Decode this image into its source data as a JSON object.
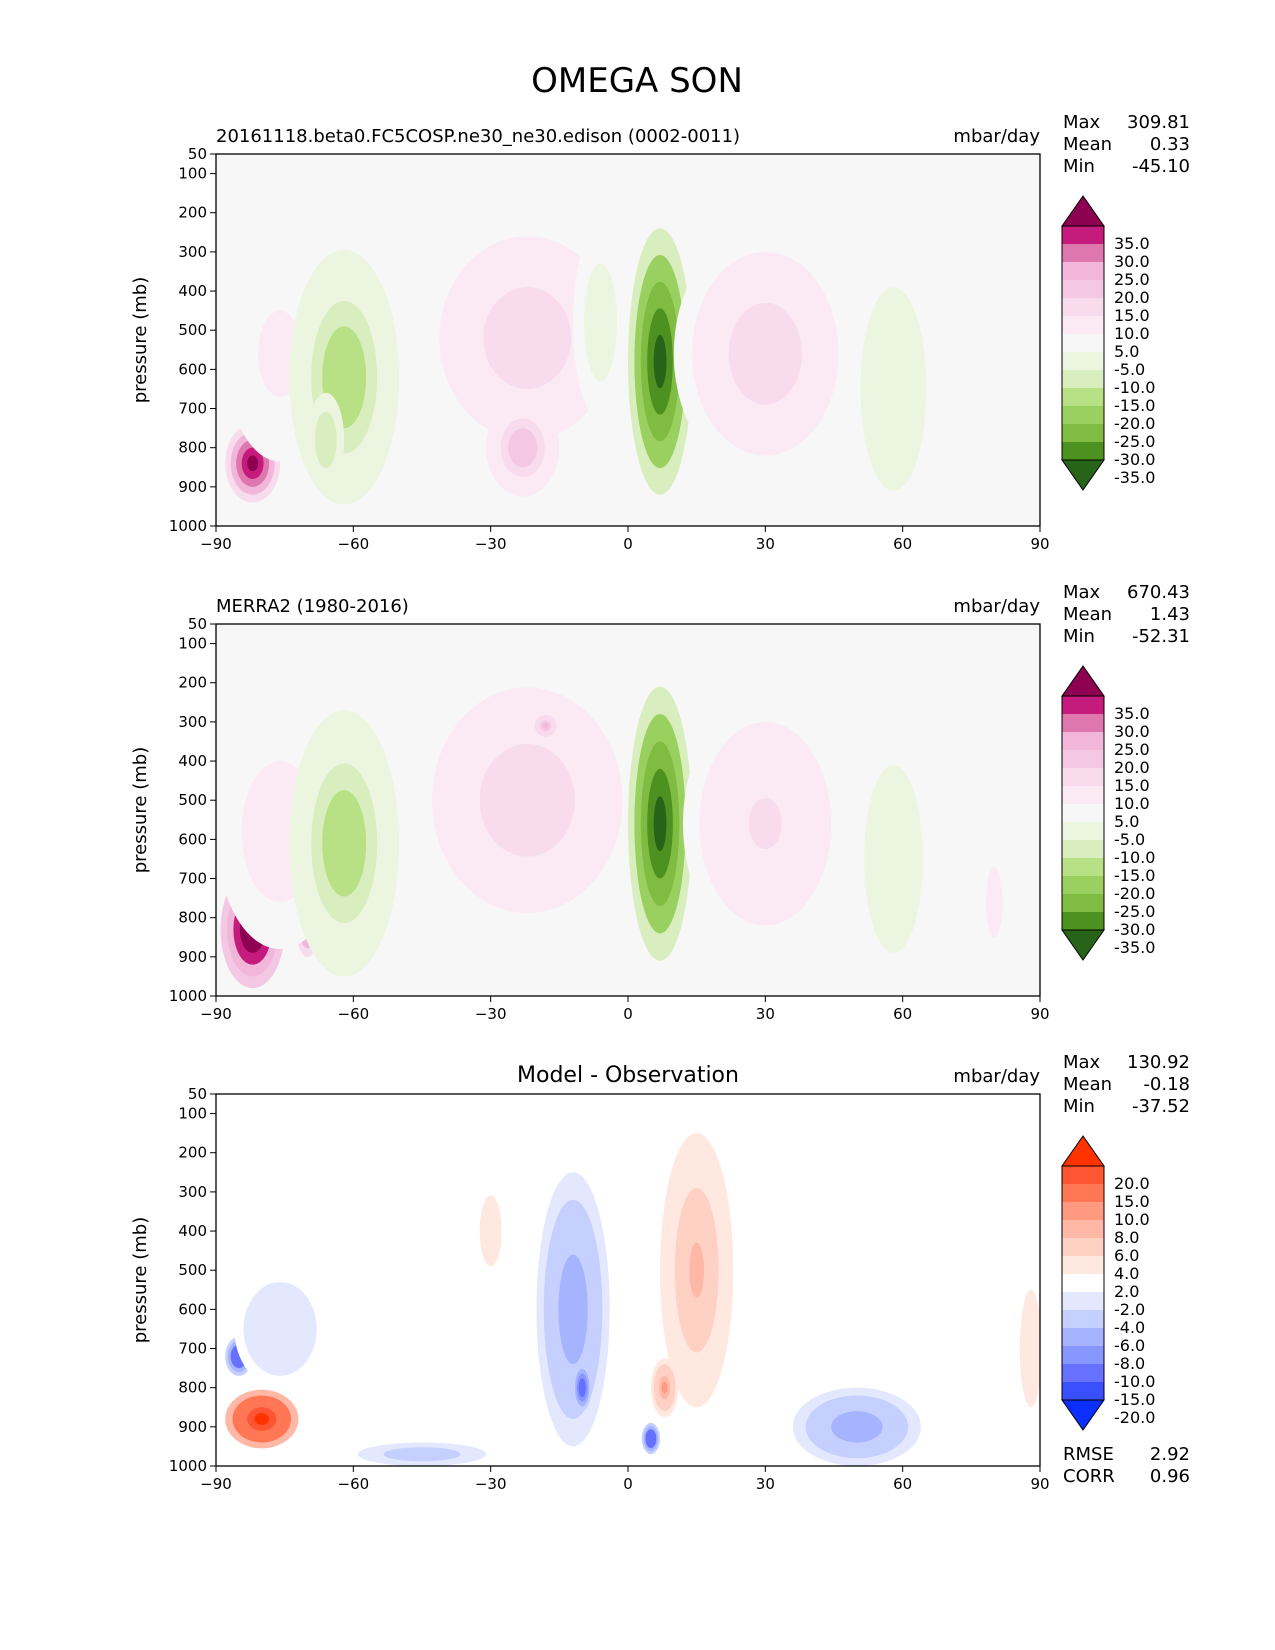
{
  "chart_data": {
    "type": "heatmap",
    "title": "OMEGA SON",
    "panels": [
      {
        "id": "test",
        "title_left": "20161118.beta0.FC5COSP.ne30_ne30.edison (0002-0011)",
        "title_center": "",
        "units": "mbar/day",
        "stats": [
          {
            "label": "Max",
            "value": "309.81"
          },
          {
            "label": "Mean",
            "value": "0.33"
          },
          {
            "label": "Min",
            "value": "-45.10"
          }
        ],
        "extra_stats": [],
        "colorbar": {
          "levels": [
            "35.0",
            "30.0",
            "25.0",
            "20.0",
            "15.0",
            "10.0",
            "5.0",
            "-5.0",
            "-10.0",
            "-15.0",
            "-20.0",
            "-25.0",
            "-30.0",
            "-35.0"
          ],
          "colors": [
            "#8e0152",
            "#c51b7d",
            "#de77ae",
            "#f1b6da",
            "#f4c8e3",
            "#f8dcee",
            "#fbeaf4",
            "#f7f7f7",
            "#ecf5e0",
            "#d9eebf",
            "#b8e186",
            "#9ad05f",
            "#7fbc41",
            "#4d9221",
            "#276419"
          ]
        },
        "features": [
          {
            "lat": -82,
            "p": 840,
            "value": 40,
            "w": 6,
            "h": 200
          },
          {
            "lat": -76,
            "p": 560,
            "value": 6,
            "w": 12,
            "h": 550
          },
          {
            "lat": -62,
            "p": 620,
            "value": -18,
            "w": 12,
            "h": 650
          },
          {
            "lat": -66,
            "p": 780,
            "value": -15,
            "w": 4,
            "h": 240
          },
          {
            "lat": -22,
            "p": 520,
            "value": 12,
            "w": 24,
            "h": 650
          },
          {
            "lat": -23,
            "p": 800,
            "value": 18,
            "w": 8,
            "h": 250
          },
          {
            "lat": -6,
            "p": 480,
            "value": -9,
            "w": 6,
            "h": 500
          },
          {
            "lat": 7,
            "p": 580,
            "value": -40,
            "w": 7,
            "h": 680
          },
          {
            "lat": 30,
            "p": 560,
            "value": 12,
            "w": 20,
            "h": 650
          },
          {
            "lat": 58,
            "p": 650,
            "value": -10,
            "w": 9,
            "h": 650
          }
        ]
      },
      {
        "id": "ref",
        "title_left": "MERRA2 (1980-2016)",
        "title_center": "",
        "units": "mbar/day",
        "stats": [
          {
            "label": "Max",
            "value": "670.43"
          },
          {
            "label": "Mean",
            "value": "1.43"
          },
          {
            "label": "Min",
            "value": "-52.31"
          }
        ],
        "extra_stats": [],
        "colorbar": {
          "levels": [
            "35.0",
            "30.0",
            "25.0",
            "20.0",
            "15.0",
            "10.0",
            "5.0",
            "-5.0",
            "-10.0",
            "-15.0",
            "-20.0",
            "-25.0",
            "-30.0",
            "-35.0"
          ],
          "colors": [
            "#8e0152",
            "#c51b7d",
            "#de77ae",
            "#f1b6da",
            "#f4c8e3",
            "#f8dcee",
            "#fbeaf4",
            "#f7f7f7",
            "#ecf5e0",
            "#d9eebf",
            "#b8e186",
            "#9ad05f",
            "#7fbc41",
            "#4d9221",
            "#276419"
          ]
        },
        "features": [
          {
            "lat": -82,
            "p": 830,
            "value": 45,
            "w": 7,
            "h": 300
          },
          {
            "lat": -70,
            "p": 790,
            "value": 40,
            "w": 3,
            "h": 220
          },
          {
            "lat": -76,
            "p": 580,
            "value": 8,
            "w": 14,
            "h": 600
          },
          {
            "lat": -62,
            "p": 610,
            "value": -18,
            "w": 12,
            "h": 680
          },
          {
            "lat": -22,
            "p": 500,
            "value": 12,
            "w": 26,
            "h": 720
          },
          {
            "lat": -18,
            "p": 310,
            "value": 22,
            "w": 3,
            "h": 70
          },
          {
            "lat": 7,
            "p": 560,
            "value": -40,
            "w": 7,
            "h": 700
          },
          {
            "lat": 30,
            "p": 560,
            "value": 10,
            "w": 18,
            "h": 650
          },
          {
            "lat": 58,
            "p": 650,
            "value": -10,
            "w": 8,
            "h": 600
          },
          {
            "lat": 80,
            "p": 760,
            "value": 8,
            "w": 3,
            "h": 300
          }
        ]
      },
      {
        "id": "diff",
        "title_left": "",
        "title_center": "Model - Observation",
        "units": "mbar/day",
        "stats": [
          {
            "label": "Max",
            "value": "130.92"
          },
          {
            "label": "Mean",
            "value": "-0.18"
          },
          {
            "label": "Min",
            "value": "-37.52"
          }
        ],
        "extra_stats": [
          {
            "label": "RMSE",
            "value": "2.92"
          },
          {
            "label": "CORR",
            "value": "0.96"
          }
        ],
        "colorbar": {
          "levels": [
            "20.0",
            "15.0",
            "10.0",
            "8.0",
            "6.0",
            "4.0",
            "2.0",
            "-2.0",
            "-4.0",
            "-6.0",
            "-8.0",
            "-10.0",
            "-15.0",
            "-20.0"
          ],
          "colors": [
            "#ff3300",
            "#ff5533",
            "#ff7755",
            "#ff9980",
            "#ffb8a6",
            "#ffd1c4",
            "#ffe8e0",
            "#ffffff",
            "#e3e8ff",
            "#c6d0ff",
            "#a6b3ff",
            "#8896ff",
            "#6672ff",
            "#3a50ff",
            "#0a2fff"
          ]
        },
        "features": [
          {
            "lat": -80,
            "p": 880,
            "value": 22,
            "w": 8,
            "h": 150
          },
          {
            "lat": -85,
            "p": 720,
            "value": -15,
            "w": 3,
            "h": 100
          },
          {
            "lat": -76,
            "p": 650,
            "value": -4,
            "w": 10,
            "h": 300
          },
          {
            "lat": -45,
            "p": 970,
            "value": -6,
            "w": 14,
            "h": 60
          },
          {
            "lat": -12,
            "p": 600,
            "value": -8,
            "w": 8,
            "h": 700
          },
          {
            "lat": -10,
            "p": 800,
            "value": -14,
            "w": 2,
            "h": 120
          },
          {
            "lat": 15,
            "p": 500,
            "value": 6,
            "w": 8,
            "h": 700
          },
          {
            "lat": 8,
            "p": 800,
            "value": 8,
            "w": 3,
            "h": 150
          },
          {
            "lat": 5,
            "p": 930,
            "value": -15,
            "w": 2,
            "h": 80
          },
          {
            "lat": -30,
            "p": 400,
            "value": 3,
            "w": 4,
            "h": 300
          },
          {
            "lat": 50,
            "p": 900,
            "value": -8,
            "w": 14,
            "h": 200
          },
          {
            "lat": 88,
            "p": 700,
            "value": 3,
            "w": 4,
            "h": 500
          }
        ]
      }
    ],
    "x_axis": {
      "ticks": [
        -90,
        -60,
        -30,
        0,
        30,
        60,
        90
      ],
      "tick_labels": [
        "−90",
        "−60",
        "−30",
        "0",
        "30",
        "60",
        "90"
      ]
    },
    "y_axis": {
      "label": "pressure (mb)",
      "ticks": [
        50,
        100,
        200,
        300,
        400,
        500,
        600,
        700,
        800,
        900,
        1000
      ],
      "tick_labels": [
        "50",
        "100",
        "200",
        "300",
        "400",
        "500",
        "600",
        "700",
        "800",
        "900",
        "1000"
      ],
      "ylim": [
        50,
        1000
      ]
    }
  }
}
